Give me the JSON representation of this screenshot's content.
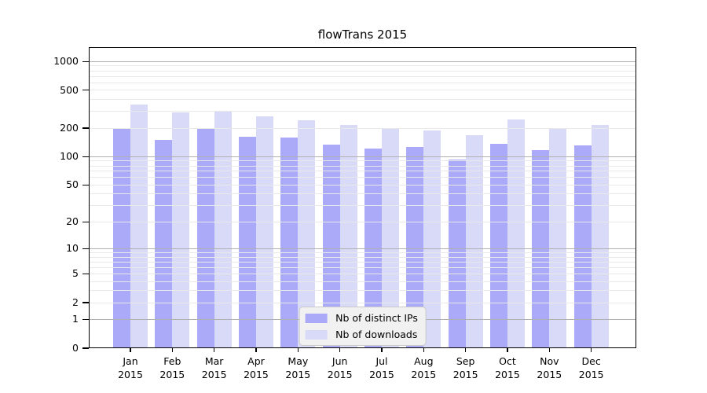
{
  "chart_data": {
    "type": "bar",
    "title": "flowTrans 2015",
    "categories": [
      "Jan",
      "Feb",
      "Mar",
      "Apr",
      "May",
      "Jun",
      "Jul",
      "Aug",
      "Sep",
      "Oct",
      "Nov",
      "Dec"
    ],
    "category_year": "2015",
    "series": [
      {
        "name": "Nb of distinct IPs",
        "color": "#aaaaf8",
        "values": [
          195,
          150,
          195,
          163,
          160,
          135,
          121,
          126,
          94,
          138,
          118,
          131
        ]
      },
      {
        "name": "Nb of downloads",
        "color": "#d9d9f8",
        "values": [
          353,
          291,
          300,
          264,
          240,
          215,
          196,
          189,
          169,
          246,
          201,
          215
        ]
      }
    ],
    "xlabel": "",
    "ylabel": "",
    "yscale": "log1p",
    "ylim": [
      0,
      1414
    ],
    "yticks": [
      0,
      1,
      2,
      5,
      10,
      20,
      50,
      100,
      200,
      500,
      1000
    ],
    "grid": {
      "visible": true,
      "major_ticks": [
        1,
        10,
        100,
        1000
      ],
      "minor_ticks": [
        2,
        3,
        4,
        5,
        6,
        7,
        8,
        9,
        20,
        30,
        40,
        50,
        60,
        70,
        80,
        90,
        200,
        300,
        400,
        500,
        600,
        700,
        800,
        900
      ],
      "major_color": "#b0b0b0",
      "minor_color": "#e9e9e9"
    },
    "legend": {
      "position": "lower center",
      "entries": [
        "Nb of distinct IPs",
        "Nb of downloads"
      ]
    },
    "colors": {
      "background": "#ffffff",
      "spine": "#000000",
      "text": "#000000"
    }
  }
}
